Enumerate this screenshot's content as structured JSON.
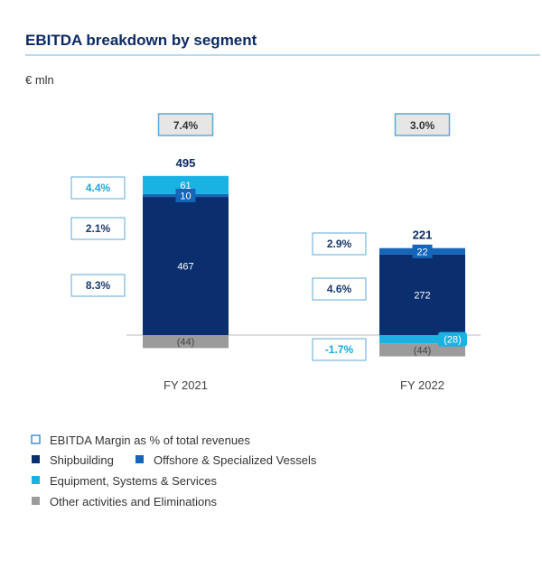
{
  "chart_data": {
    "type": "bar",
    "title": "EBITDA breakdown by segment",
    "unit_label": "€ mln",
    "categories": [
      "FY 2021",
      "FY 2022"
    ],
    "totals": [
      "495",
      "221"
    ],
    "total_margins": [
      "7.4%",
      "3.0%"
    ],
    "series": [
      {
        "name": "Shipbuilding",
        "values": [
          467,
          272
        ],
        "labels": [
          "467",
          "272"
        ],
        "margins": [
          "8.3%",
          "4.6%"
        ],
        "color": "#0b2f6e"
      },
      {
        "name": "Offshore & Specialized Vessels",
        "values": [
          10,
          22
        ],
        "labels": [
          "10",
          "22"
        ],
        "margins": [
          "2.1%",
          "2.9%"
        ],
        "color": "#1565b8"
      },
      {
        "name": "Equipment, Systems & Services",
        "values": [
          61,
          -28
        ],
        "labels": [
          "61",
          "(28)"
        ],
        "margins": [
          "4.4%",
          "-1.7%"
        ],
        "color": "#19b2e3"
      },
      {
        "name": "Other activities and Eliminations",
        "values": [
          -44,
          -44
        ],
        "labels": [
          "(44)",
          "(44)"
        ],
        "margins": [
          "",
          ""
        ],
        "color": "#9b9b9b"
      }
    ],
    "legend": [
      {
        "name": "EBITDA Margin as % of total revenues",
        "icon": "outline-square-icon",
        "color": "#4a8fd0"
      },
      {
        "name": "Shipbuilding",
        "icon": "square-icon",
        "color": "#0b2f6e"
      },
      {
        "name": "Offshore & Specialized Vessels",
        "icon": "square-icon",
        "color": "#1565b8"
      },
      {
        "name": "Equipment, Systems & Services",
        "icon": "square-icon",
        "color": "#19b2e3"
      },
      {
        "name": "Other activities and Eliminations",
        "icon": "square-icon",
        "color": "#9b9b9b"
      }
    ],
    "colors": {
      "title": "#0b2a63",
      "rule": "#6fb8de",
      "margin_border": "#5fa9d6",
      "margin_text_dark": "#1a3a6b",
      "margin_text_light": "#19a7d9"
    }
  }
}
